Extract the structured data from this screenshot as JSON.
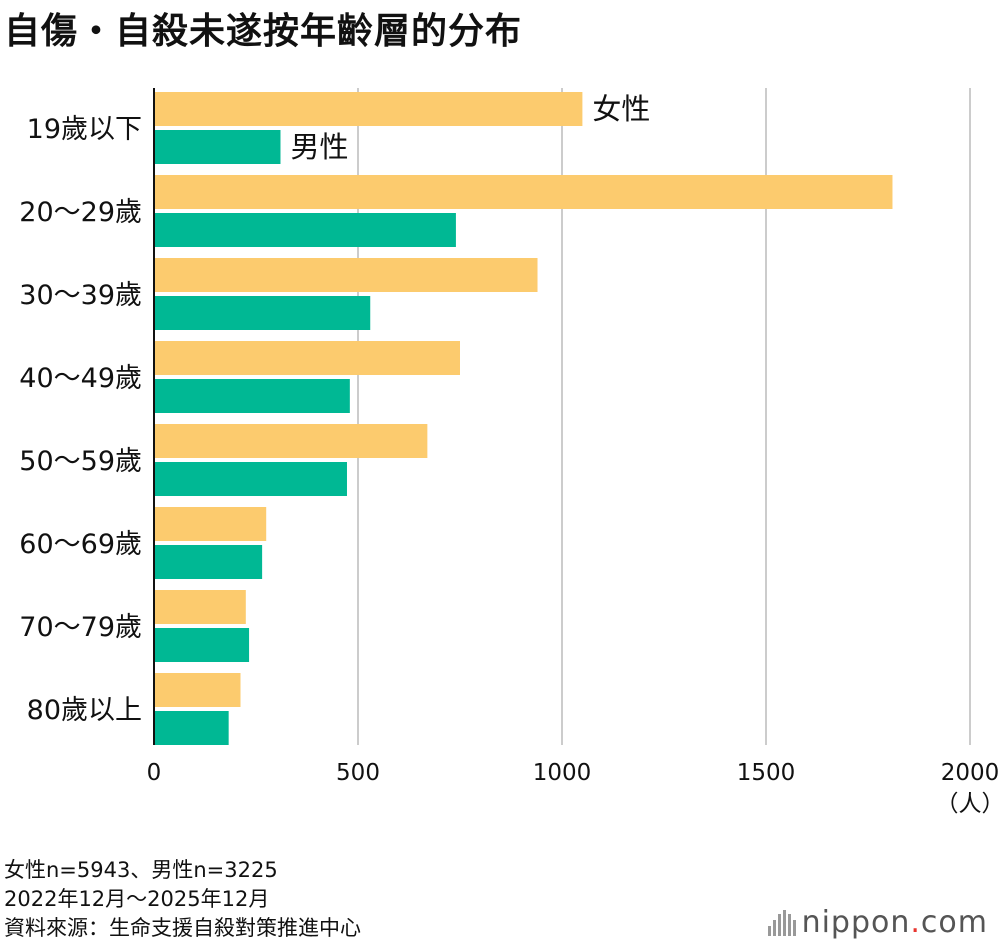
{
  "title": "自傷・自殺未遂按年齡層的分布",
  "notes": [
    "女性n=5943、男性n=3225",
    "2022年12月～2025年12月",
    "資料來源：生命支援自殺對策推進中心"
  ],
  "logo": {
    "name": "nippon",
    "dot": ".",
    "suffix": "com"
  },
  "colors": {
    "female": "#fccb6e",
    "male": "#00b894",
    "grid": "#cccccc",
    "axis": "#111111"
  },
  "chart_data": {
    "type": "bar",
    "orientation": "horizontal",
    "categories": [
      "19歲以下",
      "20～29歲",
      "30～39歲",
      "40～49歲",
      "50～59歲",
      "60～69歲",
      "70～79歲",
      "80歲以上"
    ],
    "series": [
      {
        "name": "女性",
        "color": "#fccb6e",
        "values": [
          1050,
          1810,
          940,
          750,
          670,
          275,
          225,
          212
        ]
      },
      {
        "name": "男性",
        "color": "#00b894",
        "values": [
          310,
          740,
          530,
          480,
          473,
          265,
          233,
          183
        ]
      }
    ],
    "xlim": [
      0,
      2000
    ],
    "xticks": [
      0,
      500,
      1000,
      1500,
      2000
    ],
    "xunit": "（人）",
    "grid": true
  }
}
